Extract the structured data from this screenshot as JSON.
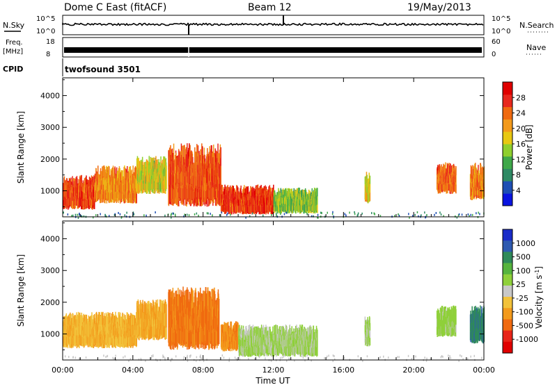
{
  "header": {
    "station": "Dome C East (fitACF)",
    "beam": "Beam 12",
    "date": "19/May/2013"
  },
  "top_panels": {
    "nsky": {
      "label": "N.Sky",
      "tick_hi": "10^5",
      "tick_lo": "10^0"
    },
    "nsearch": {
      "label": "N.Search",
      "tick_hi": "10^5",
      "tick_lo": "10^0"
    },
    "freq": {
      "label": "Freq.",
      "unit": "[MHz]",
      "tick_hi": "18",
      "tick_lo": "8"
    },
    "nave": {
      "label": "Nave",
      "tick_hi": "60",
      "tick_lo": "0"
    },
    "cpid": {
      "label": "CPID",
      "value": "twofsound 3501"
    }
  },
  "chart_data": [
    {
      "type": "heatmap",
      "name": "power",
      "x_label": "Time UT",
      "x_ticks": [
        "00:00",
        "04:00",
        "08:00",
        "12:00",
        "16:00",
        "20:00",
        "00:00"
      ],
      "x_range_hours": [
        0,
        24
      ],
      "ylabel": "Slant Range [km]",
      "y_ticks": [
        1000,
        2000,
        3000,
        4000
      ],
      "ylim": [
        180,
        4560
      ],
      "colorbar": {
        "label": "Power [dB]",
        "ticks": [
          4,
          8,
          12,
          16,
          20,
          24,
          28
        ],
        "range": [
          0,
          32
        ],
        "colors": [
          "#0a14e0",
          "#1e4fb4",
          "#2e8a64",
          "#3fa84a",
          "#8fcf2e",
          "#e8c812",
          "#f39a1c",
          "#f06a10",
          "#e8281e",
          "#e00000"
        ]
      },
      "echo_regions": [
        {
          "t0": 0.0,
          "t1": 1.8,
          "r0": 400,
          "r1": 1500,
          "value": 26
        },
        {
          "t0": 1.8,
          "t1": 4.2,
          "r0": 600,
          "r1": 1800,
          "value": 22
        },
        {
          "t0": 4.2,
          "t1": 5.9,
          "r0": 900,
          "r1": 2100,
          "value": 17
        },
        {
          "t0": 6.0,
          "t1": 9.0,
          "r0": 500,
          "r1": 2500,
          "value": 25
        },
        {
          "t0": 9.0,
          "t1": 12.0,
          "r0": 250,
          "r1": 1200,
          "value": 27
        },
        {
          "t0": 12.0,
          "t1": 14.5,
          "r0": 280,
          "r1": 1100,
          "value": 14
        },
        {
          "t0": 17.2,
          "t1": 17.5,
          "r0": 600,
          "r1": 1600,
          "value": 18
        },
        {
          "t0": 21.3,
          "t1": 22.4,
          "r0": 900,
          "r1": 1900,
          "value": 24
        },
        {
          "t0": 23.2,
          "t1": 24.0,
          "r0": 700,
          "r1": 1900,
          "value": 23
        }
      ]
    },
    {
      "type": "heatmap",
      "name": "velocity",
      "x_label": "Time UT",
      "x_ticks": [
        "00:00",
        "04:00",
        "08:00",
        "12:00",
        "16:00",
        "20:00",
        "00:00"
      ],
      "x_range_hours": [
        0,
        24
      ],
      "ylabel": "Slant Range [km]",
      "y_ticks": [
        1000,
        2000,
        3000,
        4000
      ],
      "ylim": [
        180,
        4560
      ],
      "colorbar": {
        "label": "Velocity [m s-1]",
        "ticks": [
          "1000",
          "500",
          "100",
          "25",
          "-25",
          "-100",
          "-500",
          "-1000"
        ],
        "colors": [
          "#1a2cc8",
          "#2e5ab0",
          "#2f8a5a",
          "#56b43e",
          "#8fd03a",
          "#c8c8c8",
          "#f2c23a",
          "#f39a1c",
          "#f06a10",
          "#e82418",
          "#e00000"
        ]
      },
      "echo_regions": [
        {
          "t0": 0.0,
          "t1": 4.2,
          "r0": 550,
          "r1": 1700,
          "value": -300
        },
        {
          "t0": 4.2,
          "t1": 5.9,
          "r0": 800,
          "r1": 2100,
          "value": -350
        },
        {
          "t0": 6.0,
          "t1": 8.9,
          "r0": 500,
          "r1": 2500,
          "value": -600
        },
        {
          "t0": 9.0,
          "t1": 10.0,
          "r0": 450,
          "r1": 1400,
          "value": -500
        },
        {
          "t0": 10.0,
          "t1": 14.5,
          "r0": 280,
          "r1": 1300,
          "value": 150
        },
        {
          "t0": 17.2,
          "t1": 17.5,
          "r0": 600,
          "r1": 1600,
          "value": 120
        },
        {
          "t0": 21.3,
          "t1": 22.4,
          "r0": 900,
          "r1": 1900,
          "value": 200
        },
        {
          "t0": 23.2,
          "t1": 24.0,
          "r0": 700,
          "r1": 1900,
          "value": 700
        }
      ]
    }
  ],
  "velocity_unit_prefix": "Velocity [m s",
  "velocity_unit_exp": "-1",
  "velocity_unit_suffix": "]",
  "power_colorbar_label": "Power [dB]",
  "time_axis_label": "Time UT",
  "y_axis_label": "Slant Range [km]"
}
